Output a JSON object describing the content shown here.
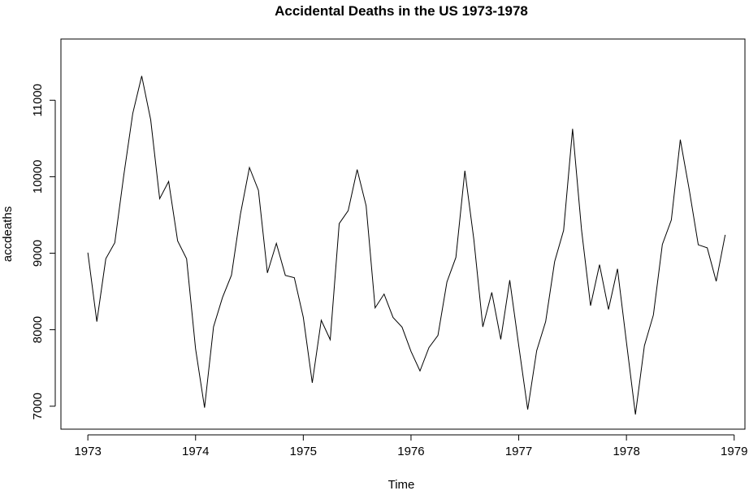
{
  "chart_data": {
    "type": "line",
    "title": "Accidental Deaths in the US 1973-1978",
    "xlabel": "Time",
    "ylabel": "accdeaths",
    "xlim": [
      1972.75,
      1979.1
    ],
    "ylim": [
      6700,
      11800
    ],
    "x_start": 1973,
    "x_frequency": 12,
    "x_ticks": [
      "1973",
      "1974",
      "1975",
      "1976",
      "1977",
      "1978",
      "1979"
    ],
    "y_ticks": [
      "7000",
      "8000",
      "9000",
      "10000",
      "11000"
    ],
    "grid": false,
    "line_color": "#000000",
    "series": [
      {
        "values": [
          9007,
          8106,
          8928,
          9137,
          10017,
          10826,
          11317,
          10744,
          9713,
          9938,
          9161,
          8927,
          7750,
          6981,
          8038,
          8422,
          8714,
          9512,
          10120,
          9823,
          8743,
          9129,
          8710,
          8680,
          8162,
          7306,
          8124,
          7870,
          9387,
          9556,
          10093,
          9620,
          8285,
          8466,
          8160,
          8034,
          7717,
          7461,
          7767,
          7925,
          8623,
          8945,
          10078,
          9179,
          8037,
          8488,
          7874,
          8647,
          7792,
          6957,
          7726,
          8106,
          8890,
          9299,
          10625,
          9302,
          8314,
          8850,
          8265,
          8796,
          7836,
          6892,
          7791,
          8192,
          9115,
          9434,
          10484,
          9827,
          9110,
          9070,
          8633,
          9240
        ]
      }
    ]
  }
}
